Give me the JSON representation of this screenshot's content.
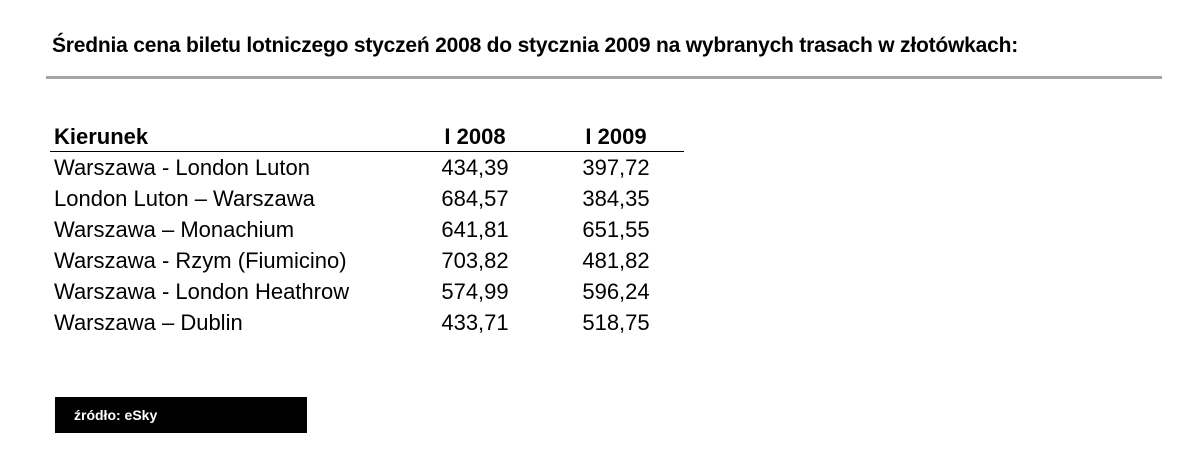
{
  "title": "Średnia cena biletu lotniczego styczeń 2008 do stycznia 2009 na wybranych trasach w złotówkach:",
  "source": "źródło: eSky",
  "chart_data": {
    "type": "table",
    "title": "Średnia cena biletu lotniczego styczeń 2008 do stycznia 2009 na wybranych trasach w złotówkach:",
    "columns": [
      "Kierunek",
      "I 2008",
      "I 2009"
    ],
    "rows": [
      [
        "Warszawa - London Luton",
        "434,39",
        "397,72"
      ],
      [
        "London Luton – Warszawa",
        "684,57",
        "384,35"
      ],
      [
        "Warszawa – Monachium",
        "641,81",
        "651,55"
      ],
      [
        "Warszawa - Rzym (Fiumicino)",
        "703,82",
        "481,82"
      ],
      [
        "Warszawa - London Heathrow",
        "574,99",
        "596,24"
      ],
      [
        "Warszawa – Dublin",
        "433,71",
        "518,75"
      ]
    ],
    "source": "źródło: eSky"
  }
}
